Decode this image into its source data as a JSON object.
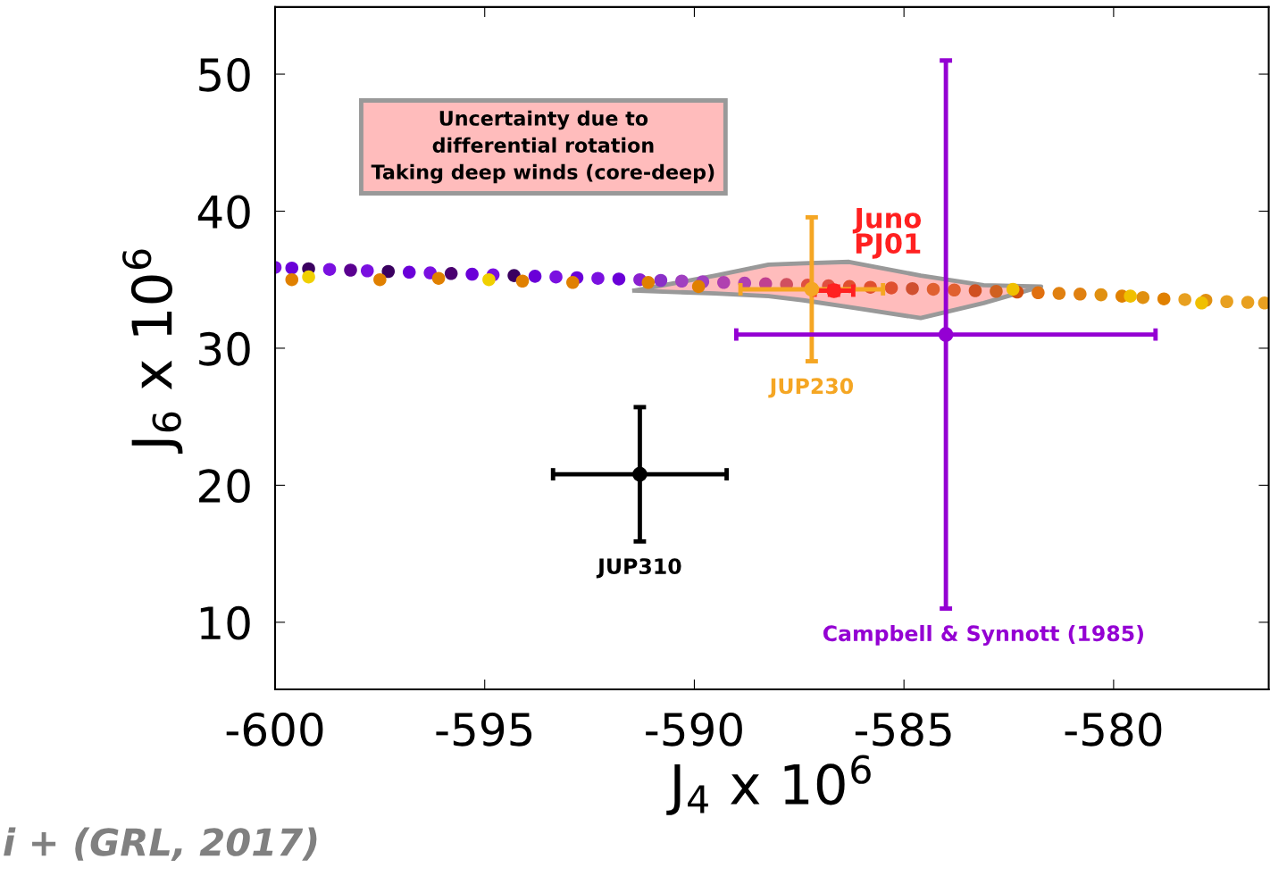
{
  "chart_data": {
    "type": "scatter",
    "xlabel": "J$_{4}$ x 10$^{6}$",
    "ylabel": "J$_{6}$ x 10$^{6}$",
    "xlim": [
      -600,
      -576.3
    ],
    "ylim": [
      5.1,
      54.9
    ],
    "xticks": [
      -600,
      -595,
      -590,
      -585,
      -580
    ],
    "yticks": [
      10,
      20,
      30,
      40,
      50
    ],
    "grid": false,
    "legend": false,
    "marker": "circle",
    "series": [
      {
        "x": [
          -600,
          -599.6,
          -599.2,
          -598.7,
          -598.2,
          -597.8,
          -597.3,
          -596.8,
          -596.3,
          -595.8,
          -595.3,
          -594.8,
          -594.3,
          -593.8,
          -593.3,
          -592.8,
          -592.3,
          -591.8,
          -591.3,
          -590.8,
          -590.3,
          -589.8,
          -589.3,
          -588.8,
          -588.3,
          -587.8,
          -587.3,
          -586.8,
          -586.3,
          -585.8,
          -585.3,
          -584.8,
          -584.3,
          -583.8,
          -583.3,
          -582.8,
          -582.3,
          -581.8,
          -581.3,
          -580.8,
          -580.3,
          -579.8,
          -579.3,
          -578.8,
          -578.3,
          -577.8,
          -577.3,
          -576.8,
          -576.4,
          -599.6,
          -599.2,
          -597.5,
          -596.1,
          -594.9,
          -594.1,
          -592.9,
          -591.1,
          -589.9,
          -582.4,
          -579.6,
          -577.9
        ],
        "values": [
          35.9,
          35.85,
          35.8,
          35.75,
          35.7,
          35.65,
          35.6,
          35.55,
          35.5,
          35.45,
          35.4,
          35.35,
          35.3,
          35.25,
          35.2,
          35.15,
          35.1,
          35.05,
          35.0,
          34.95,
          34.9,
          34.85,
          34.8,
          34.75,
          34.7,
          34.65,
          34.6,
          34.55,
          34.5,
          34.45,
          34.4,
          34.35,
          34.3,
          34.25,
          34.2,
          34.15,
          34.1,
          34.05,
          34.0,
          33.95,
          33.9,
          33.8,
          33.7,
          33.6,
          33.55,
          33.5,
          33.4,
          33.35,
          33.3,
          35.0,
          35.2,
          35.0,
          35.1,
          35.0,
          34.9,
          34.8,
          34.8,
          34.5,
          34.3,
          33.8,
          33.3
        ],
        "colors": [
          "#7a10e0",
          "#6a00d8",
          "#3a0060",
          "#7a10e0",
          "#5a0090",
          "#7a10e0",
          "#3a0060",
          "#6a00d8",
          "#7a10e0",
          "#4a0070",
          "#6a00d8",
          "#7a10e0",
          "#3a0060",
          "#6a00d8",
          "#7a10e0",
          "#6a00d8",
          "#7a10e0",
          "#6a00d8",
          "#8a20d0",
          "#8a30c8",
          "#a040c0",
          "#a040c0",
          "#b040b0",
          "#b040b0",
          "#c04090",
          "#d05060",
          "#e05040",
          "#e05040",
          "#e05030",
          "#e05030",
          "#e05030",
          "#d05030",
          "#e06030",
          "#e06030",
          "#d05020",
          "#d06020",
          "#d05010",
          "#e07010",
          "#e08010",
          "#e08010",
          "#e09010",
          "#e08000",
          "#e09010",
          "#e08000",
          "#e8a020",
          "#e09010",
          "#e8a020",
          "#e8a020",
          "#e8a020",
          "#e08000",
          "#f0d000",
          "#e08000",
          "#e08000",
          "#f0d000",
          "#e08000",
          "#e08000",
          "#e08000",
          "#e08000",
          "#f0c000",
          "#f0c000",
          "#f0c000"
        ]
      },
      {
        "type": "area",
        "x": [
          -591.43,
          -589.5,
          -588.23,
          -587.4,
          -586.31,
          -584.6,
          -583.1,
          -581.73,
          -583.1,
          -584.6,
          -586.31,
          -587.4,
          -588.23,
          -589.5,
          -591.43
        ],
        "values": [
          34.2,
          35.3,
          36.1,
          36.2,
          36.3,
          35.3,
          34.6,
          34.5,
          33.3,
          32.2,
          33.0,
          33.5,
          33.8,
          34.0,
          34.2
        ],
        "color": "#ffbcbc",
        "marker": "none"
      },
      {
        "name": "JUP310",
        "color": "#000000",
        "x": [
          -591.3
        ],
        "values": [
          20.8
        ],
        "errors": [
          4.9
        ],
        "xerrors": [
          2.07
        ]
      },
      {
        "name": "JUP230",
        "color": "#f5a623",
        "x": [
          -587.2
        ],
        "values": [
          34.3
        ],
        "errors": [
          5.25
        ],
        "xerrors": [
          1.7
        ]
      },
      {
        "name": "Juno\nPJ01",
        "color": "#ff2020",
        "x": [
          -586.67
        ],
        "values": [
          34.2
        ],
        "errors": [
          0.3
        ],
        "xerrors": [
          0.46
        ]
      },
      {
        "name": "Campbell & Synnott (1985)",
        "color": "#9400d3",
        "x": [
          -584.0
        ],
        "values": [
          31.0
        ],
        "errors": [
          20.0
        ],
        "xerrors": [
          5.0
        ]
      }
    ],
    "annotations": [
      "Uncertainty due to\ndifferential rotation\nTaking deep winds (core-deep)",
      "i + (GRL, 2017)"
    ]
  }
}
